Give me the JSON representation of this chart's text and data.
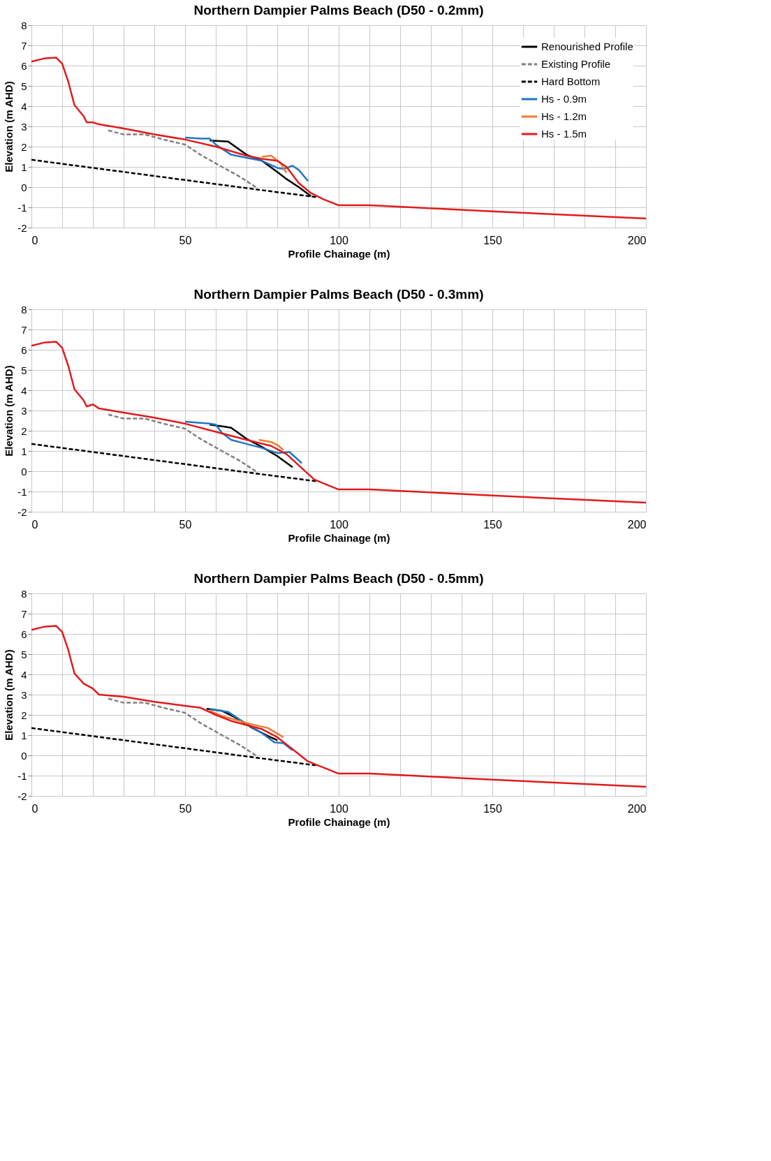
{
  "chart_data": [
    {
      "type": "line",
      "title": "Northern Dampier Palms Beach (D50 - 0.2mm)",
      "xlabel": "Profile Chainage (m)",
      "ylabel": "Elevation (m AHD)",
      "xlim": [
        0,
        200
      ],
      "ylim": [
        -2,
        8
      ],
      "xticks": [
        0,
        {
          "value": 10,
          "label": null
        },
        {
          "value": 20,
          "label": null
        },
        {
          "value": 30,
          "label": null
        },
        {
          "value": 40,
          "label": null
        },
        50,
        {
          "value": 60,
          "label": null
        },
        {
          "value": 70,
          "label": null
        },
        {
          "value": 80,
          "label": null
        },
        {
          "value": 90,
          "label": null
        },
        100,
        {
          "value": 110,
          "label": null
        },
        {
          "value": 120,
          "label": null
        },
        {
          "value": 130,
          "label": null
        },
        {
          "value": 140,
          "label": null
        },
        150,
        {
          "value": 160,
          "label": null
        },
        {
          "value": 170,
          "label": null
        },
        {
          "value": 180,
          "label": null
        },
        {
          "value": 190,
          "label": null
        },
        200
      ],
      "yticks": [
        -2,
        -1,
        0,
        1,
        2,
        3,
        4,
        5,
        6,
        7,
        8
      ],
      "grid": true,
      "legend": "top right",
      "marker": "none",
      "series": [
        {
          "name": "Renourished Profile",
          "color": "#000000",
          "line_style": "solid",
          "x": [
            58,
            64,
            70,
            75,
            80,
            83,
            87,
            91
          ],
          "values": [
            2.3,
            2.25,
            1.6,
            1.3,
            0.75,
            0.4,
            0.0,
            -0.45
          ]
        },
        {
          "name": "Existing Profile",
          "color": "#808080",
          "line_style": "dashed",
          "x": [
            25,
            30,
            37,
            43,
            50,
            55,
            62,
            68,
            73
          ],
          "values": [
            2.8,
            2.6,
            2.6,
            2.35,
            2.1,
            1.6,
            1.0,
            0.5,
            0.0
          ]
        },
        {
          "name": "Hard Bottom",
          "color": "#000000",
          "line_style": "dashed",
          "x": [
            0,
            50,
            75,
            93
          ],
          "values": [
            1.35,
            0.35,
            -0.15,
            -0.5
          ]
        },
        {
          "name": "Hs - 0.9m",
          "color": "#1f77c4",
          "line_style": "solid",
          "x": [
            50,
            55,
            58,
            60,
            65,
            70,
            75,
            80,
            82,
            85,
            87,
            90
          ],
          "values": [
            2.45,
            2.4,
            2.4,
            2.1,
            1.6,
            1.45,
            1.3,
            0.95,
            0.9,
            1.05,
            0.85,
            0.3
          ]
        },
        {
          "name": "Hs - 1.2m",
          "color": "#ed7d31",
          "line_style": "solid",
          "x": [
            75,
            78,
            81,
            83
          ],
          "values": [
            1.5,
            1.55,
            1.2,
            0.7
          ]
        },
        {
          "name": "Hs - 1.5m",
          "color": "#e31a1c",
          "line_style": "solid",
          "x": [
            0,
            4,
            8,
            10,
            12,
            14,
            17,
            18,
            20,
            22,
            30,
            40,
            50,
            60,
            70,
            75,
            80,
            83,
            87,
            91,
            95,
            100,
            110,
            117,
            150,
            200
          ],
          "values": [
            6.2,
            6.35,
            6.4,
            6.1,
            5.2,
            4.05,
            3.5,
            3.2,
            3.2,
            3.1,
            2.9,
            2.6,
            2.35,
            2.0,
            1.55,
            1.4,
            1.3,
            1.0,
            0.2,
            -0.3,
            -0.6,
            -0.9,
            -0.9,
            -0.95,
            -1.2,
            -1.55
          ]
        }
      ]
    },
    {
      "type": "line",
      "title": "Northern Dampier Palms Beach (D50 - 0.3mm)",
      "xlabel": "Profile Chainage (m)",
      "ylabel": "Elevation (m AHD)",
      "xlim": [
        0,
        200
      ],
      "ylim": [
        -2,
        8
      ],
      "xticks": [
        0,
        {
          "value": 10,
          "label": null
        },
        {
          "value": 20,
          "label": null
        },
        {
          "value": 30,
          "label": null
        },
        {
          "value": 40,
          "label": null
        },
        50,
        {
          "value": 60,
          "label": null
        },
        {
          "value": 70,
          "label": null
        },
        {
          "value": 80,
          "label": null
        },
        {
          "value": 90,
          "label": null
        },
        100,
        {
          "value": 110,
          "label": null
        },
        {
          "value": 120,
          "label": null
        },
        {
          "value": 130,
          "label": null
        },
        {
          "value": 140,
          "label": null
        },
        150,
        {
          "value": 160,
          "label": null
        },
        {
          "value": 170,
          "label": null
        },
        {
          "value": 180,
          "label": null
        },
        {
          "value": 190,
          "label": null
        },
        200
      ],
      "yticks": [
        -2,
        -1,
        0,
        1,
        2,
        3,
        4,
        5,
        6,
        7,
        8
      ],
      "grid": true,
      "legend": "top right",
      "marker": "none",
      "series": [
        {
          "name": "Renourished Profile",
          "color": "#000000",
          "line_style": "solid",
          "x": [
            58,
            63,
            65,
            70,
            75,
            80,
            85
          ],
          "values": [
            2.3,
            2.2,
            2.15,
            1.6,
            1.2,
            0.75,
            0.2
          ]
        },
        {
          "name": "Existing Profile",
          "color": "#808080",
          "line_style": "dashed",
          "x": [
            25,
            30,
            37,
            43,
            50,
            55,
            62,
            68,
            73
          ],
          "values": [
            2.8,
            2.6,
            2.6,
            2.35,
            2.1,
            1.6,
            1.0,
            0.5,
            0.0
          ]
        },
        {
          "name": "Hard Bottom",
          "color": "#000000",
          "line_style": "dashed",
          "x": [
            0,
            50,
            75,
            93
          ],
          "values": [
            1.35,
            0.35,
            -0.15,
            -0.5
          ]
        },
        {
          "name": "Hs - 0.9m",
          "color": "#1f77c4",
          "line_style": "solid",
          "x": [
            50,
            58,
            60,
            62,
            65,
            70,
            75,
            80,
            84,
            88
          ],
          "values": [
            2.45,
            2.35,
            2.3,
            1.9,
            1.55,
            1.35,
            1.15,
            0.9,
            0.95,
            0.4
          ]
        },
        {
          "name": "Hs - 1.2m",
          "color": "#ed7d31",
          "line_style": "solid",
          "x": [
            74,
            78,
            80,
            82
          ],
          "values": [
            1.55,
            1.45,
            1.3,
            1.05
          ]
        },
        {
          "name": "Hs - 1.5m",
          "color": "#e31a1c",
          "line_style": "solid",
          "x": [
            0,
            4,
            8,
            10,
            12,
            14,
            17,
            18,
            20,
            22,
            30,
            40,
            50,
            60,
            70,
            78,
            83,
            88,
            92,
            95,
            100,
            110,
            117,
            150,
            200
          ],
          "values": [
            6.2,
            6.35,
            6.4,
            6.1,
            5.2,
            4.05,
            3.5,
            3.2,
            3.3,
            3.1,
            2.9,
            2.65,
            2.35,
            1.95,
            1.55,
            1.25,
            0.85,
            0.15,
            -0.4,
            -0.6,
            -0.9,
            -0.9,
            -0.95,
            -1.2,
            -1.55
          ]
        }
      ]
    },
    {
      "type": "line",
      "title": "Northern Dampier Palms Beach (D50 - 0.5mm)",
      "xlabel": "Profile Chainage (m)",
      "ylabel": "Elevation (m AHD)",
      "xlim": [
        0,
        200
      ],
      "ylim": [
        -2,
        8
      ],
      "xticks": [
        0,
        {
          "value": 10,
          "label": null
        },
        {
          "value": 20,
          "label": null
        },
        {
          "value": 30,
          "label": null
        },
        {
          "value": 40,
          "label": null
        },
        50,
        {
          "value": 60,
          "label": null
        },
        {
          "value": 70,
          "label": null
        },
        {
          "value": 80,
          "label": null
        },
        {
          "value": 90,
          "label": null
        },
        100,
        {
          "value": 110,
          "label": null
        },
        {
          "value": 120,
          "label": null
        },
        {
          "value": 130,
          "label": null
        },
        {
          "value": 140,
          "label": null
        },
        150,
        {
          "value": 160,
          "label": null
        },
        {
          "value": 170,
          "label": null
        },
        {
          "value": 180,
          "label": null
        },
        {
          "value": 190,
          "label": null
        },
        200
      ],
      "yticks": [
        -2,
        -1,
        0,
        1,
        2,
        3,
        4,
        5,
        6,
        7,
        8
      ],
      "grid": true,
      "legend": "top right",
      "marker": "none",
      "series": [
        {
          "name": "Renourished Profile",
          "color": "#000000",
          "line_style": "solid",
          "x": [
            57,
            62,
            66,
            72,
            77,
            80
          ],
          "values": [
            2.3,
            2.2,
            1.9,
            1.35,
            0.95,
            0.75
          ]
        },
        {
          "name": "Existing Profile",
          "color": "#808080",
          "line_style": "dashed",
          "x": [
            25,
            30,
            37,
            43,
            50,
            55,
            62,
            68,
            73
          ],
          "values": [
            2.8,
            2.6,
            2.6,
            2.35,
            2.1,
            1.6,
            1.0,
            0.5,
            0.0
          ]
        },
        {
          "name": "Hard Bottom",
          "color": "#000000",
          "line_style": "dashed",
          "x": [
            0,
            50,
            75,
            93
          ],
          "values": [
            1.35,
            0.35,
            -0.15,
            -0.5
          ]
        },
        {
          "name": "Hs - 0.9m",
          "color": "#1f77c4",
          "line_style": "solid",
          "x": [
            58,
            60,
            64,
            68,
            75,
            79,
            82,
            85
          ],
          "values": [
            2.3,
            2.25,
            2.15,
            1.75,
            1.1,
            0.65,
            0.6,
            0.25
          ]
        },
        {
          "name": "Hs - 1.2m",
          "color": "#ed7d31",
          "line_style": "solid",
          "x": [
            58,
            62,
            70,
            77,
            82
          ],
          "values": [
            2.2,
            1.95,
            1.6,
            1.35,
            0.9
          ]
        },
        {
          "name": "Hs - 1.5m",
          "color": "#e31a1c",
          "line_style": "solid",
          "x": [
            0,
            4,
            8,
            10,
            12,
            14,
            17,
            20,
            22,
            30,
            40,
            50,
            55,
            60,
            65,
            70,
            75,
            80,
            85,
            90,
            95,
            100,
            110,
            117,
            150,
            200
          ],
          "values": [
            6.2,
            6.35,
            6.4,
            6.1,
            5.2,
            4.05,
            3.55,
            3.3,
            3.0,
            2.9,
            2.65,
            2.45,
            2.35,
            2.0,
            1.7,
            1.5,
            1.3,
            0.9,
            0.3,
            -0.3,
            -0.6,
            -0.9,
            -0.9,
            -0.95,
            -1.2,
            -1.55
          ]
        }
      ]
    }
  ]
}
